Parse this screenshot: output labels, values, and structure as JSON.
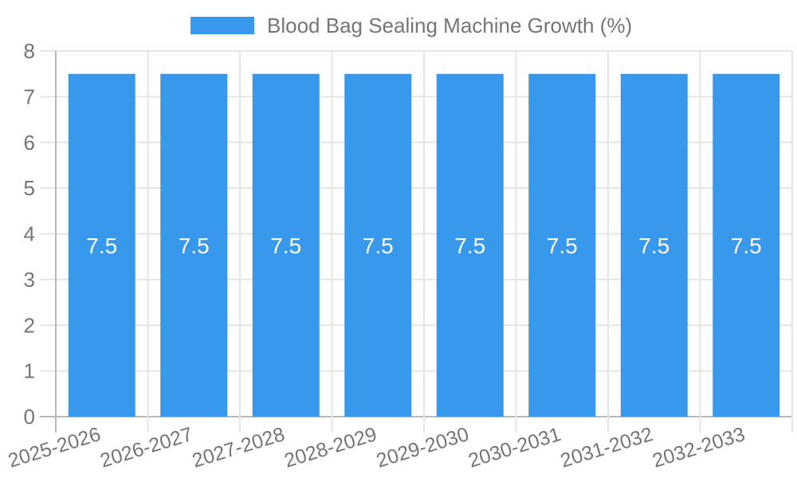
{
  "chart_data": {
    "type": "bar",
    "title": "",
    "categories": [
      "2025-2026",
      "2026-2027",
      "2027-2028",
      "2028-2029",
      "2029-2030",
      "2030-2031",
      "2031-2032",
      "2032-2033"
    ],
    "series": [
      {
        "name": "Blood Bag Sealing Machine Growth (%)",
        "values": [
          7.5,
          7.5,
          7.5,
          7.5,
          7.5,
          7.5,
          7.5,
          7.5
        ],
        "bar_labels": [
          "7.5",
          "7.5",
          "7.5",
          "7.5",
          "7.5",
          "7.5",
          "7.5",
          "7.5"
        ]
      }
    ],
    "xlabel": "",
    "ylabel": "",
    "ylim": [
      0,
      8
    ],
    "yticks": [
      0,
      1,
      2,
      3,
      4,
      5,
      6,
      7,
      8
    ],
    "ytick_labels": [
      "0",
      "1",
      "2",
      "3",
      "4",
      "5",
      "6",
      "7",
      "8"
    ],
    "grid": true,
    "legend": {
      "position": "top",
      "label": "Blood Bag Sealing Machine Growth (%)"
    },
    "colors": {
      "bar": "#3899ec",
      "grid": "#e5e5e5",
      "axis": "#b8b8b8",
      "tick_text": "#757575",
      "bar_label_text": "#ffffff",
      "background": "#ffffff"
    }
  }
}
